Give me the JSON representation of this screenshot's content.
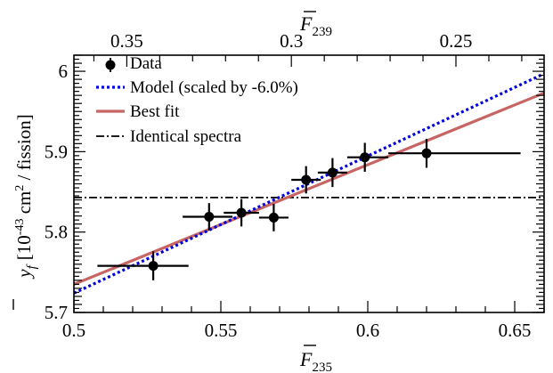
{
  "chart_data": {
    "type": "scatter",
    "x_axis": {
      "label": "F",
      "label_subscript": "235",
      "range": [
        0.5,
        0.66
      ],
      "ticks": [
        0.5,
        0.55,
        0.6,
        0.65
      ],
      "tick_labels": [
        "0.5",
        "0.55",
        "0.6",
        "0.65"
      ]
    },
    "x2_axis": {
      "label": "F",
      "label_subscript": "239",
      "ticks": [
        0.35,
        0.3,
        0.25
      ],
      "tick_labels": [
        "0.35",
        "0.3",
        "0.25"
      ]
    },
    "y_axis": {
      "label_symbol": "y",
      "label_subscript": "f",
      "label_unit_prefix": "[10",
      "label_exponent": "-43",
      "label_unit_mid": " cm",
      "label_unit_sup": "2",
      "label_unit_suffix": " / fission]",
      "range": [
        5.7,
        6.02
      ],
      "ticks": [
        5.7,
        5.8,
        5.9,
        6.0
      ],
      "tick_labels": [
        "5.7",
        "5.8",
        "5.9",
        "6"
      ]
    },
    "series": [
      {
        "name": "Data",
        "kind": "points_with_errors",
        "color": "#000000",
        "points": [
          {
            "x": 0.527,
            "y": 5.758,
            "xerr_lo": 0.019,
            "xerr_hi": 0.012,
            "yerr": 0.018
          },
          {
            "x": 0.546,
            "y": 5.819,
            "xerr_lo": 0.009,
            "xerr_hi": 0.008,
            "yerr": 0.017
          },
          {
            "x": 0.557,
            "y": 5.824,
            "xerr_lo": 0.006,
            "xerr_hi": 0.006,
            "yerr": 0.017
          },
          {
            "x": 0.568,
            "y": 5.818,
            "xerr_lo": 0.005,
            "xerr_hi": 0.005,
            "yerr": 0.017
          },
          {
            "x": 0.579,
            "y": 5.865,
            "xerr_lo": 0.005,
            "xerr_hi": 0.005,
            "yerr": 0.017
          },
          {
            "x": 0.588,
            "y": 5.874,
            "xerr_lo": 0.005,
            "xerr_hi": 0.005,
            "yerr": 0.018
          },
          {
            "x": 0.599,
            "y": 5.893,
            "xerr_lo": 0.006,
            "xerr_hi": 0.008,
            "yerr": 0.018
          },
          {
            "x": 0.62,
            "y": 5.898,
            "xerr_lo": 0.013,
            "xerr_hi": 0.032,
            "yerr": 0.018
          }
        ]
      },
      {
        "name": "Model (scaled by -6.0%)",
        "kind": "line",
        "color": "#0000dd",
        "style": "dotted",
        "points": [
          {
            "x": 0.5,
            "y": 5.724
          },
          {
            "x": 0.66,
            "y": 5.997
          }
        ]
      },
      {
        "name": "Best fit",
        "kind": "line",
        "color": "#c86464",
        "style": "solid",
        "points": [
          {
            "x": 0.5,
            "y": 5.735
          },
          {
            "x": 0.66,
            "y": 5.973
          }
        ]
      },
      {
        "name": "Identical spectra",
        "kind": "line",
        "color": "#000000",
        "style": "dashdot",
        "points": [
          {
            "x": 0.5,
            "y": 5.843
          },
          {
            "x": 0.66,
            "y": 5.843
          }
        ]
      }
    ],
    "legend": {
      "placement": "top-left",
      "entries": [
        "Data",
        "Model (scaled by -6.0%)",
        "Best fit",
        "Identical spectra"
      ]
    },
    "grid": false
  }
}
